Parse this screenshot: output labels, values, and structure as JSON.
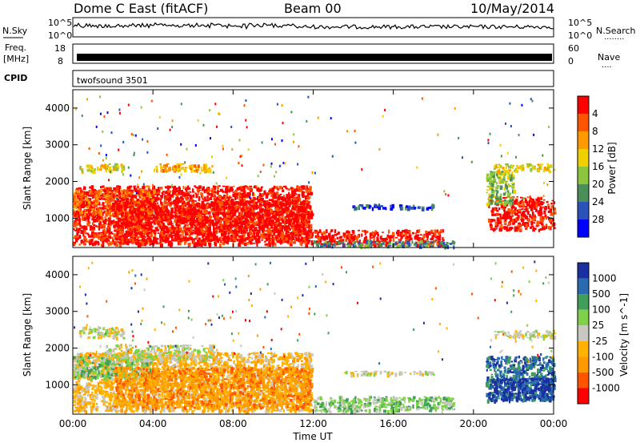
{
  "header": {
    "station": "Dome C East (fitACF)",
    "beam": "Beam 00",
    "date": "10/May/2014"
  },
  "top_panels": {
    "nsky_label": "N.Sky",
    "nsearch_label": "N.Search",
    "nsearch_dots": "........",
    "left_top": "10^5",
    "left_bottom": "10^0",
    "right_top": "10^5",
    "right_bottom": "10^0",
    "freq_label_1": "Freq.",
    "freq_label_2": "[MHz]",
    "freq_top": "18",
    "freq_bottom": "8",
    "nave_top": "60",
    "nave_bottom": "0",
    "nave_label": "Nave",
    "nave_dots": "....",
    "cpid_label": "CPID",
    "cpid_value": "twofsound 3501"
  },
  "colors": {
    "power": [
      "#0000ff",
      "#2a52b8",
      "#4a8f5a",
      "#8cc63f",
      "#f0d000",
      "#ff9900",
      "#ff5500",
      "#ff0000"
    ],
    "velocity": [
      "#ff0000",
      "#ff5500",
      "#ff9900",
      "#ffb300",
      "#c8c8c0",
      "#7fd04a",
      "#3f9f5a",
      "#2a6bb0",
      "#1a2fa0"
    ]
  },
  "chart_data": [
    {
      "type": "heatmap",
      "title": "",
      "xlabel": "",
      "ylabel": "Slant Range [km]",
      "xticks": [
        "00:00",
        "04:00",
        "08:00",
        "12:00",
        "16:00",
        "20:00",
        "00:00"
      ],
      "yticks": [
        "1000",
        "2000",
        "3000",
        "4000"
      ],
      "ylim": [
        200,
        4500
      ],
      "colorbar_label": "Power [dB]",
      "colorbar_ticks": [
        "4",
        "8",
        "12",
        "16",
        "20",
        "24",
        "28"
      ],
      "regions": [
        {
          "t0": 0.0,
          "t1": 11.9,
          "r0": 300,
          "r1": 1900,
          "level": 7
        },
        {
          "t0": 0.0,
          "t1": 4.0,
          "r0": 1100,
          "r1": 1800,
          "level": 6
        },
        {
          "t0": 2.0,
          "t1": 11.9,
          "r0": 400,
          "r1": 1500,
          "level": 7
        },
        {
          "t0": 0.3,
          "t1": 2.5,
          "r0": 2300,
          "r1": 2500,
          "level": 4
        },
        {
          "t0": 4.0,
          "t1": 7.0,
          "r0": 2300,
          "r1": 2500,
          "level": 5
        },
        {
          "t0": 12.0,
          "t1": 18.5,
          "r0": 300,
          "r1": 700,
          "level": 7
        },
        {
          "t0": 12.0,
          "t1": 19.0,
          "r0": 250,
          "r1": 400,
          "level": 2
        },
        {
          "t0": 13.5,
          "t1": 18.0,
          "r0": 1300,
          "r1": 1400,
          "level": 1
        },
        {
          "t0": 20.7,
          "t1": 24.0,
          "r0": 700,
          "r1": 1600,
          "level": 7
        },
        {
          "t0": 20.6,
          "t1": 22.0,
          "r0": 1400,
          "r1": 2300,
          "level": 3
        },
        {
          "t0": 21.0,
          "t1": 24.0,
          "r0": 2300,
          "r1": 2500,
          "level": 4
        }
      ]
    },
    {
      "type": "heatmap",
      "title": "",
      "xlabel": "Time UT",
      "ylabel": "Slant Range [km]",
      "xticks": [
        "00:00",
        "04:00",
        "08:00",
        "12:00",
        "16:00",
        "20:00",
        "00:00"
      ],
      "yticks": [
        "1000",
        "2000",
        "3000",
        "4000"
      ],
      "ylim": [
        200,
        4500
      ],
      "colorbar_label": "Velocity [m s^-1]",
      "colorbar_ticks": [
        "1000",
        "500",
        "100",
        "25",
        "-25",
        "-100",
        "-500",
        "-1000"
      ],
      "regions": [
        {
          "t0": 0.0,
          "t1": 11.9,
          "r0": 300,
          "r1": 1900,
          "level": 3
        },
        {
          "t0": 0.0,
          "t1": 4.0,
          "r0": 1200,
          "r1": 1800,
          "level": 5
        },
        {
          "t0": 2.0,
          "t1": 11.9,
          "r0": 400,
          "r1": 1500,
          "level": 2
        },
        {
          "t0": 0.3,
          "t1": 2.5,
          "r0": 2300,
          "r1": 2600,
          "level": 4
        },
        {
          "t0": 1.5,
          "t1": 7.0,
          "r0": 1700,
          "r1": 2100,
          "level": 4
        },
        {
          "t0": 12.0,
          "t1": 19.0,
          "r0": 300,
          "r1": 700,
          "level": 5
        },
        {
          "t0": 13.5,
          "t1": 18.0,
          "r0": 1300,
          "r1": 1400,
          "level": 4
        },
        {
          "t0": 20.6,
          "t1": 24.0,
          "r0": 600,
          "r1": 1800,
          "level": 7
        },
        {
          "t0": 20.8,
          "t1": 24.0,
          "r0": 600,
          "r1": 1200,
          "level": 8
        },
        {
          "t0": 21.0,
          "t1": 24.0,
          "r0": 2300,
          "r1": 2500,
          "level": 4
        }
      ]
    }
  ]
}
